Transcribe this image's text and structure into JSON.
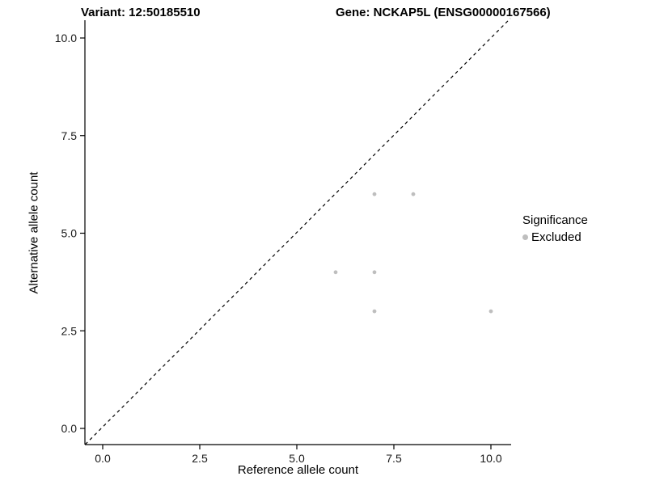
{
  "titles": {
    "variant": "Variant: 12:50185510",
    "gene": "Gene: NCKAP5L (ENSG00000167566)"
  },
  "chart_data": {
    "type": "scatter",
    "xlabel": "Reference allele count",
    "ylabel": "Alternative allele count",
    "xlim": [
      -0.45,
      10.5
    ],
    "ylim": [
      -0.41,
      10.5
    ],
    "x_ticks": [
      0.0,
      2.5,
      5.0,
      7.5,
      10.0
    ],
    "y_ticks": [
      0.0,
      2.5,
      5.0,
      7.5,
      10.0
    ],
    "x_tick_labels": [
      "0.0",
      "2.5",
      "5.0",
      "7.5",
      "10.0"
    ],
    "y_tick_labels": [
      "0.0",
      "2.5",
      "5.0",
      "7.5",
      "10.0"
    ],
    "grid": false,
    "series": [
      {
        "name": "Excluded",
        "color": "#bebebe",
        "points": [
          [
            7,
            6
          ],
          [
            8,
            6
          ],
          [
            6,
            4
          ],
          [
            7,
            4
          ],
          [
            7,
            3
          ],
          [
            10,
            3
          ]
        ]
      }
    ],
    "reference_line": {
      "style": "dashed",
      "color": "#000000",
      "from": [
        0,
        0
      ],
      "to": [
        10,
        10
      ],
      "description": "identity line y = x"
    },
    "legend": {
      "position": "right",
      "title": "Significance",
      "entries": [
        {
          "label": "Excluded",
          "color": "#bebebe"
        }
      ]
    }
  }
}
